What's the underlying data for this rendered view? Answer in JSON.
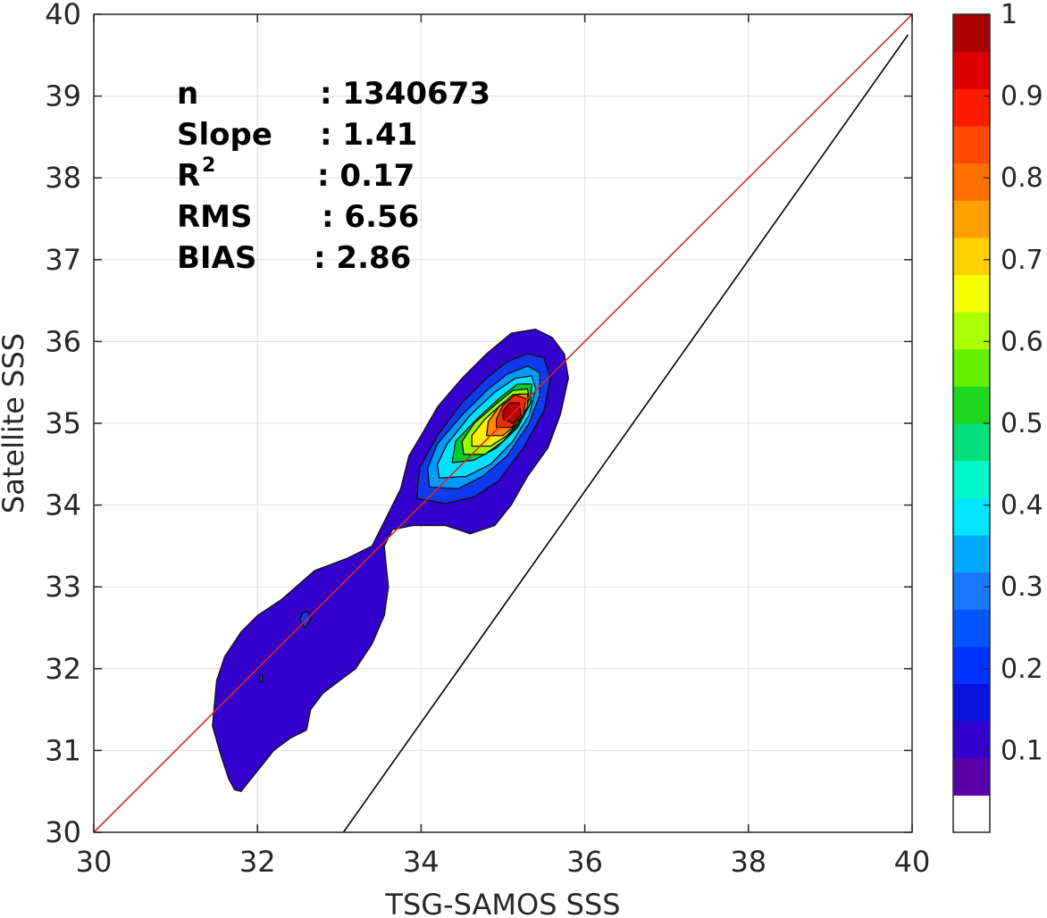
{
  "chart_data": {
    "type": "contour",
    "xlabel": "TSG-SAMOS SSS",
    "ylabel": "Satellite SSS",
    "xlim": [
      30,
      40
    ],
    "ylim": [
      30,
      40
    ],
    "x_ticks": [
      "30",
      "32",
      "34",
      "36",
      "38",
      "40"
    ],
    "y_ticks": [
      "30",
      "31",
      "32",
      "33",
      "34",
      "35",
      "36",
      "37",
      "38",
      "39",
      "40"
    ],
    "grid": true,
    "stats": [
      {
        "key": "n",
        "sup": "",
        "value": ": 1340673"
      },
      {
        "key": "Slope",
        "sup": "",
        "value": ": 1.41"
      },
      {
        "key": "R",
        "sup": "2",
        "value": ": 0.17"
      },
      {
        "key": "RMS",
        "sup": "",
        "value": ": 6.56"
      },
      {
        "key": "BIAS",
        "sup": "",
        "value": ": 2.86"
      }
    ],
    "reference_lines": [
      {
        "name": "1:1",
        "color": "#d62728",
        "points": [
          [
            30,
            30
          ],
          [
            40,
            40
          ]
        ]
      },
      {
        "name": "fit",
        "color": "#000000",
        "points": [
          [
            33.05,
            30
          ],
          [
            39.95,
            39.75
          ]
        ]
      }
    ],
    "density_peak": {
      "x": 35.15,
      "y": 35.15,
      "value": 1.0
    },
    "levels": [
      {
        "level": 0.05,
        "color": "#3300cc",
        "polygon": [
          [
            31.72,
            30.52
          ],
          [
            31.8,
            30.5
          ],
          [
            31.88,
            30.6
          ],
          [
            32.0,
            30.75
          ],
          [
            32.2,
            31.0
          ],
          [
            32.4,
            31.15
          ],
          [
            32.6,
            31.25
          ],
          [
            32.65,
            31.5
          ],
          [
            32.8,
            31.7
          ],
          [
            33.0,
            31.85
          ],
          [
            33.2,
            32.0
          ],
          [
            33.4,
            32.3
          ],
          [
            33.55,
            32.65
          ],
          [
            33.6,
            33.0
          ],
          [
            33.58,
            33.2
          ],
          [
            33.55,
            33.5
          ],
          [
            33.65,
            33.7
          ],
          [
            33.9,
            33.75
          ],
          [
            34.3,
            33.75
          ],
          [
            34.6,
            33.65
          ],
          [
            34.9,
            33.75
          ],
          [
            35.1,
            34.0
          ],
          [
            35.3,
            34.35
          ],
          [
            35.55,
            34.7
          ],
          [
            35.7,
            35.1
          ],
          [
            35.8,
            35.55
          ],
          [
            35.75,
            35.85
          ],
          [
            35.6,
            36.05
          ],
          [
            35.4,
            36.15
          ],
          [
            35.1,
            36.1
          ],
          [
            34.8,
            35.85
          ],
          [
            34.5,
            35.55
          ],
          [
            34.2,
            35.2
          ],
          [
            34.0,
            34.85
          ],
          [
            33.85,
            34.6
          ],
          [
            33.75,
            34.2
          ],
          [
            33.6,
            33.9
          ],
          [
            33.4,
            33.5
          ],
          [
            33.1,
            33.35
          ],
          [
            32.7,
            33.2
          ],
          [
            32.3,
            32.85
          ],
          [
            32.0,
            32.65
          ],
          [
            31.8,
            32.45
          ],
          [
            31.6,
            32.15
          ],
          [
            31.5,
            31.85
          ],
          [
            31.45,
            31.3
          ],
          [
            31.55,
            30.95
          ],
          [
            31.65,
            30.65
          ]
        ]
      },
      {
        "level": 0.15,
        "color": "#0f3af0",
        "polygon": [
          [
            33.95,
            34.08
          ],
          [
            34.3,
            34.02
          ],
          [
            34.65,
            34.1
          ],
          [
            34.95,
            34.3
          ],
          [
            35.25,
            34.7
          ],
          [
            35.5,
            35.15
          ],
          [
            35.58,
            35.55
          ],
          [
            35.5,
            35.8
          ],
          [
            35.3,
            35.85
          ],
          [
            35.05,
            35.75
          ],
          [
            34.8,
            35.55
          ],
          [
            34.5,
            35.25
          ],
          [
            34.2,
            34.85
          ],
          [
            33.98,
            34.45
          ]
        ]
      },
      {
        "level": 0.25,
        "color": "#0099ff",
        "polygon": [
          [
            34.1,
            34.22
          ],
          [
            34.45,
            34.2
          ],
          [
            34.75,
            34.35
          ],
          [
            35.05,
            34.6
          ],
          [
            35.32,
            35.0
          ],
          [
            35.45,
            35.35
          ],
          [
            35.45,
            35.62
          ],
          [
            35.3,
            35.7
          ],
          [
            35.05,
            35.6
          ],
          [
            34.8,
            35.4
          ],
          [
            34.5,
            35.1
          ],
          [
            34.2,
            34.75
          ],
          [
            34.08,
            34.45
          ]
        ]
      },
      {
        "level": 0.35,
        "color": "#00e0ff",
        "polygon": [
          [
            34.22,
            34.33
          ],
          [
            34.55,
            34.35
          ],
          [
            34.85,
            34.5
          ],
          [
            35.12,
            34.78
          ],
          [
            35.32,
            35.1
          ],
          [
            35.4,
            35.42
          ],
          [
            35.35,
            35.58
          ],
          [
            35.15,
            35.55
          ],
          [
            34.9,
            35.38
          ],
          [
            34.6,
            35.1
          ],
          [
            34.32,
            34.75
          ],
          [
            34.2,
            34.5
          ]
        ]
      },
      {
        "level": 0.45,
        "color": "#00cc33",
        "polygon": [
          [
            34.38,
            34.52
          ],
          [
            34.65,
            34.55
          ],
          [
            34.92,
            34.7
          ],
          [
            35.18,
            34.95
          ],
          [
            35.34,
            35.25
          ],
          [
            35.35,
            35.48
          ],
          [
            35.18,
            35.48
          ],
          [
            34.95,
            35.3
          ],
          [
            34.68,
            35.05
          ],
          [
            34.42,
            34.78
          ]
        ]
      },
      {
        "level": 0.55,
        "color": "#99ff00",
        "polygon": [
          [
            34.52,
            34.62
          ],
          [
            34.78,
            34.62
          ],
          [
            35.0,
            34.78
          ],
          [
            35.22,
            35.02
          ],
          [
            35.32,
            35.3
          ],
          [
            35.3,
            35.42
          ],
          [
            35.12,
            35.4
          ],
          [
            34.9,
            35.22
          ],
          [
            34.65,
            35.0
          ],
          [
            34.5,
            34.78
          ]
        ]
      },
      {
        "level": 0.65,
        "color": "#ffee00",
        "polygon": [
          [
            34.62,
            34.72
          ],
          [
            34.85,
            34.72
          ],
          [
            35.05,
            34.85
          ],
          [
            35.25,
            35.08
          ],
          [
            35.3,
            35.32
          ],
          [
            35.2,
            35.36
          ],
          [
            35.0,
            35.25
          ],
          [
            34.78,
            35.05
          ],
          [
            34.62,
            34.85
          ]
        ]
      },
      {
        "level": 0.75,
        "color": "#ff8800",
        "polygon": [
          [
            34.8,
            34.85
          ],
          [
            35.0,
            34.85
          ],
          [
            35.18,
            35.0
          ],
          [
            35.3,
            35.2
          ],
          [
            35.3,
            35.36
          ],
          [
            35.12,
            35.35
          ],
          [
            34.95,
            35.2
          ],
          [
            34.82,
            35.02
          ]
        ]
      },
      {
        "level": 0.85,
        "color": "#ff2a00",
        "polygon": [
          [
            34.92,
            34.95
          ],
          [
            35.1,
            34.95
          ],
          [
            35.25,
            35.1
          ],
          [
            35.28,
            35.3
          ],
          [
            35.15,
            35.35
          ],
          [
            35.0,
            35.22
          ],
          [
            34.92,
            35.05
          ]
        ]
      },
      {
        "level": 0.95,
        "color": "#bb0000",
        "polygon": [
          [
            35.0,
            35.05
          ],
          [
            35.12,
            35.0
          ],
          [
            35.22,
            35.1
          ],
          [
            35.2,
            35.25
          ],
          [
            35.08,
            35.25
          ],
          [
            35.0,
            35.15
          ]
        ]
      }
    ],
    "small_features": [
      {
        "color": "#0f3af0",
        "polygon": [
          [
            32.52,
            32.6
          ],
          [
            32.58,
            32.5
          ],
          [
            32.65,
            32.6
          ],
          [
            32.62,
            32.7
          ],
          [
            32.55,
            32.68
          ]
        ]
      },
      {
        "color": "#0f3af0",
        "polygon": [
          [
            32.03,
            31.84
          ],
          [
            32.06,
            31.84
          ],
          [
            32.06,
            31.92
          ],
          [
            32.03,
            31.92
          ]
        ]
      }
    ],
    "colorbar": {
      "colors": [
        "#ffffff",
        "#5a00a8",
        "#3300cc",
        "#0a14e0",
        "#0033ff",
        "#0055ff",
        "#1a78ff",
        "#00a8ff",
        "#00e6ff",
        "#00f7c8",
        "#00e07a",
        "#1fd620",
        "#66ee00",
        "#aaff00",
        "#f5ff00",
        "#ffd000",
        "#ffa000",
        "#ff7000",
        "#ff4a00",
        "#ff1a00",
        "#dd0000",
        "#aa0000"
      ],
      "ticks": [
        "0.1",
        "0.2",
        "0.3",
        "0.4",
        "0.5",
        "0.6",
        "0.7",
        "0.8",
        "0.9",
        "1"
      ]
    }
  }
}
